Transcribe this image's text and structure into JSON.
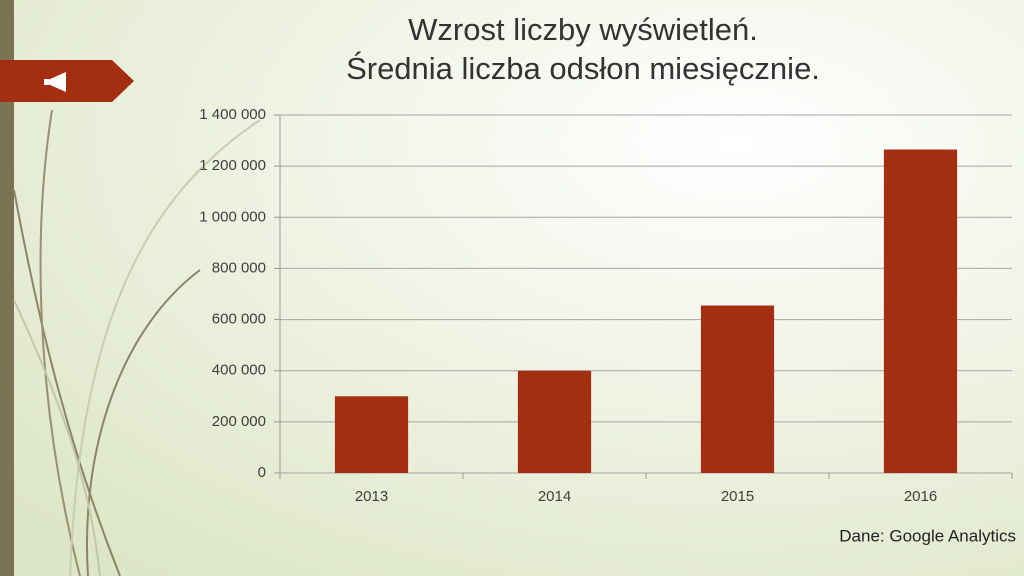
{
  "chart_data": {
    "type": "bar",
    "title": "Wzrost liczby wyświetleń.",
    "subtitle": "Średnia liczba odsłon miesięcznie.",
    "categories": [
      "2013",
      "2014",
      "2015",
      "2016"
    ],
    "values": [
      300000,
      400000,
      655000,
      1265000
    ],
    "color": "#a32e12",
    "ylim": [
      0,
      1400000
    ],
    "yticks": [
      0,
      {
        "value": 200000,
        "label": "200 000"
      },
      {
        "value": 400000,
        "label": "400 000"
      },
      {
        "value": 600000,
        "label": "600 000"
      },
      {
        "value": 800000,
        "label": "800 000"
      },
      {
        "value": 1000000,
        "label": "1 000 000"
      },
      {
        "value": 1200000,
        "label": "1 200 000"
      },
      {
        "value": 1400000,
        "label": "1 400 000"
      }
    ],
    "grid": true,
    "annotation": "Dane: Google Analytics"
  }
}
